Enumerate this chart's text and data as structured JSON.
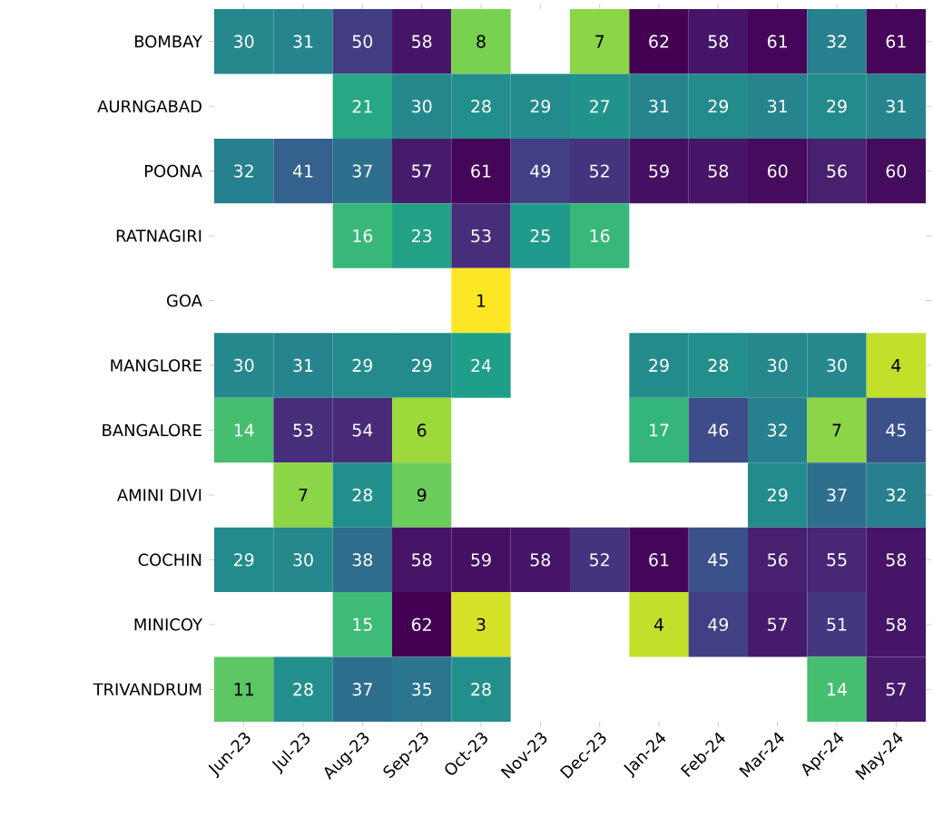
{
  "chart_data": {
    "type": "heatmap",
    "data_labels": true,
    "categories": [
      "Jun-23",
      "Jul-23",
      "Aug-23",
      "Sep-23",
      "Oct-23",
      "Nov-23",
      "Dec-23",
      "Jan-24",
      "Feb-24",
      "Mar-24",
      "Apr-24",
      "May-24"
    ],
    "y_categories": [
      "BOMBAY",
      "AURNGABAD",
      "POONA",
      "RATNAGIRI",
      "GOA",
      "MANGLORE",
      "BANGALORE",
      "AMINI DIVI",
      "COCHIN",
      "MINICOY",
      "TRIVANDRUM"
    ],
    "cells": [
      [
        30,
        31,
        50,
        58,
        8,
        null,
        7,
        62,
        58,
        61,
        32,
        61
      ],
      [
        null,
        null,
        21,
        30,
        28,
        29,
        27,
        31,
        29,
        31,
        29,
        31
      ],
      [
        32,
        41,
        37,
        57,
        61,
        49,
        52,
        59,
        58,
        60,
        56,
        60
      ],
      [
        null,
        null,
        16,
        23,
        53,
        25,
        16,
        null,
        null,
        null,
        null,
        null
      ],
      [
        null,
        null,
        null,
        null,
        1,
        null,
        null,
        null,
        null,
        null,
        null,
        null
      ],
      [
        30,
        31,
        29,
        29,
        24,
        null,
        null,
        29,
        28,
        30,
        30,
        4
      ],
      [
        14,
        53,
        54,
        6,
        null,
        null,
        null,
        17,
        46,
        32,
        7,
        45
      ],
      [
        null,
        7,
        28,
        9,
        null,
        null,
        null,
        null,
        null,
        29,
        37,
        32
      ],
      [
        29,
        30,
        38,
        58,
        59,
        58,
        52,
        61,
        45,
        56,
        55,
        58
      ],
      [
        null,
        null,
        15,
        62,
        3,
        null,
        null,
        4,
        49,
        57,
        51,
        58
      ],
      [
        11,
        28,
        37,
        35,
        28,
        null,
        null,
        null,
        null,
        null,
        14,
        57
      ]
    ]
  }
}
